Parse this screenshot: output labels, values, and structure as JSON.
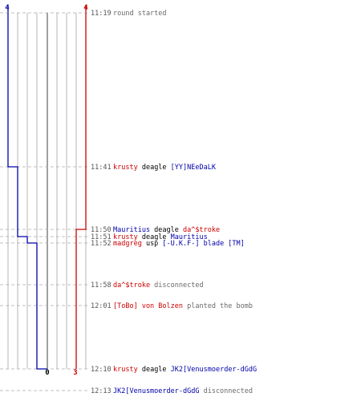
{
  "round": {
    "team_a_start": "4",
    "team_b_start": "4",
    "team_a_end": "0",
    "team_b_end": "3",
    "colors": {
      "team_a": "#0000aa",
      "team_b": "#cc0000",
      "neutral": "#6a6a6a",
      "grid": "#b4b4b4"
    }
  },
  "events": [
    {
      "time": "11:19",
      "parts": [
        {
          "t": "round started",
          "c": "gray"
        }
      ],
      "team_a": 4,
      "team_b": 4
    },
    {
      "time": "11:41",
      "parts": [
        {
          "t": "krusty",
          "c": "red"
        },
        {
          "t": " deagle ",
          "c": "black"
        },
        {
          "t": "[YY]NEeDaLK",
          "c": "blue"
        }
      ],
      "team_a": 3,
      "team_b": 4
    },
    {
      "time": "11:50",
      "parts": [
        {
          "t": "Mauritius",
          "c": "blue"
        },
        {
          "t": " deagle ",
          "c": "black"
        },
        {
          "t": "da^$troke",
          "c": "red"
        }
      ],
      "team_a": 3,
      "team_b": 3
    },
    {
      "time": "11:51",
      "parts": [
        {
          "t": "krusty",
          "c": "red"
        },
        {
          "t": " deagle ",
          "c": "black"
        },
        {
          "t": "Mauritius",
          "c": "blue"
        }
      ],
      "team_a": 2,
      "team_b": 3
    },
    {
      "time": "11:52",
      "parts": [
        {
          "t": "madgreg",
          "c": "red"
        },
        {
          "t": " usp ",
          "c": "black"
        },
        {
          "t": "[-U.K.F-] blade [TM]",
          "c": "blue"
        }
      ],
      "team_a": 1,
      "team_b": 3
    },
    {
      "time": "11:58",
      "parts": [
        {
          "t": "da^$troke",
          "c": "red"
        },
        {
          "t": " disconnected",
          "c": "gray"
        }
      ],
      "team_a": 1,
      "team_b": 3
    },
    {
      "time": "12:01",
      "parts": [
        {
          "t": "[ToBo] von Bolzen",
          "c": "red"
        },
        {
          "t": " planted the bomb",
          "c": "gray"
        }
      ],
      "team_a": 1,
      "team_b": 3
    },
    {
      "time": "12:10",
      "parts": [
        {
          "t": "krusty",
          "c": "red"
        },
        {
          "t": " deagle ",
          "c": "black"
        },
        {
          "t": "JK2[Venusmoerder-dGdG",
          "c": "blue"
        }
      ],
      "team_a": 0,
      "team_b": 3
    },
    {
      "time": "12:13",
      "parts": [
        {
          "t": "JK2[Venusmoerder-dGdG",
          "c": "blue"
        },
        {
          "t": " disconnected",
          "c": "gray"
        }
      ],
      "team_a": 0,
      "team_b": 3
    }
  ]
}
